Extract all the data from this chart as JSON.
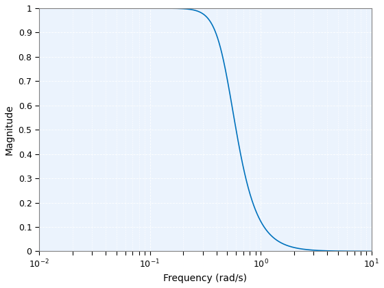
{
  "xlabel": "Frequency (rad/s)",
  "ylabel": "Magnitude",
  "xlim": [
    0.01,
    10
  ],
  "ylim": [
    0,
    1
  ],
  "yticks": [
    0,
    0.1,
    0.2,
    0.3,
    0.4,
    0.5,
    0.6,
    0.7,
    0.8,
    0.9,
    1.0
  ],
  "ytick_labels": [
    "0",
    "0.1",
    "0.2",
    "0.3",
    "0.4",
    "0.5",
    "0.6",
    "0.7",
    "0.8",
    "0.9",
    "1"
  ],
  "line_color": "#0072BD",
  "line_width": 1.2,
  "background_color": "#FFFFFF",
  "plot_bg_color": "#EBF3FD",
  "grid_color": "#FFFFFF",
  "filter_order": 3,
  "cutoff_freq": 0.5,
  "fig_width": 5.6,
  "fig_height": 4.2,
  "dpi": 100
}
